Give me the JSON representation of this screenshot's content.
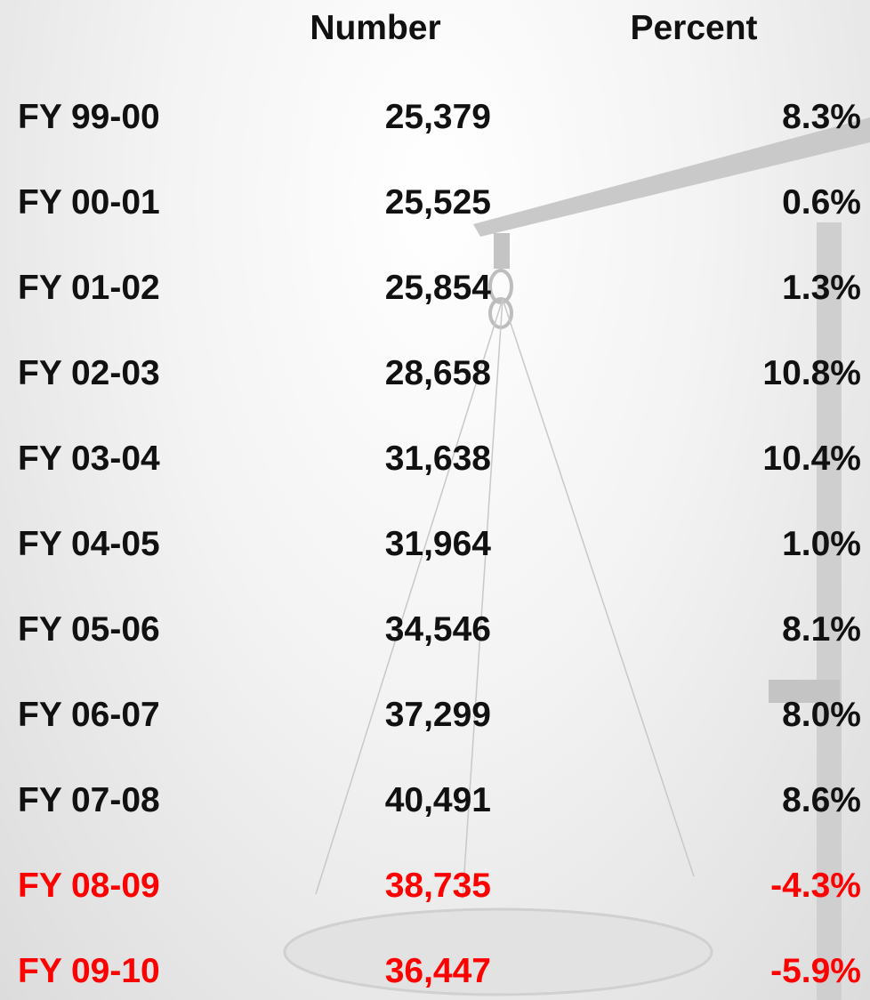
{
  "table": {
    "header": [
      "Number",
      "Percent"
    ],
    "rows": [
      [
        "FY 99-00",
        "25,379",
        "8.3%"
      ],
      [
        "FY 00-01",
        "25,525",
        "0.6%"
      ],
      [
        "FY 01-02",
        "25,854",
        "1.3%"
      ],
      [
        "FY 02-03",
        "28,658",
        "10.8%"
      ],
      [
        "FY 03-04",
        "31,638",
        "10.4%"
      ],
      [
        "FY 04-05",
        "31,964",
        "1.0%"
      ],
      [
        "FY 05-06",
        "34,546",
        "8.1%"
      ],
      [
        "FY 06-07",
        "37,299",
        "8.0%"
      ],
      [
        "FY 07-08",
        "40,491",
        "8.6%"
      ],
      [
        "FY 08-09",
        "38,735",
        "-4.3%"
      ],
      [
        "FY 09-10",
        "36,447",
        "-5.9%"
      ]
    ]
  }
}
